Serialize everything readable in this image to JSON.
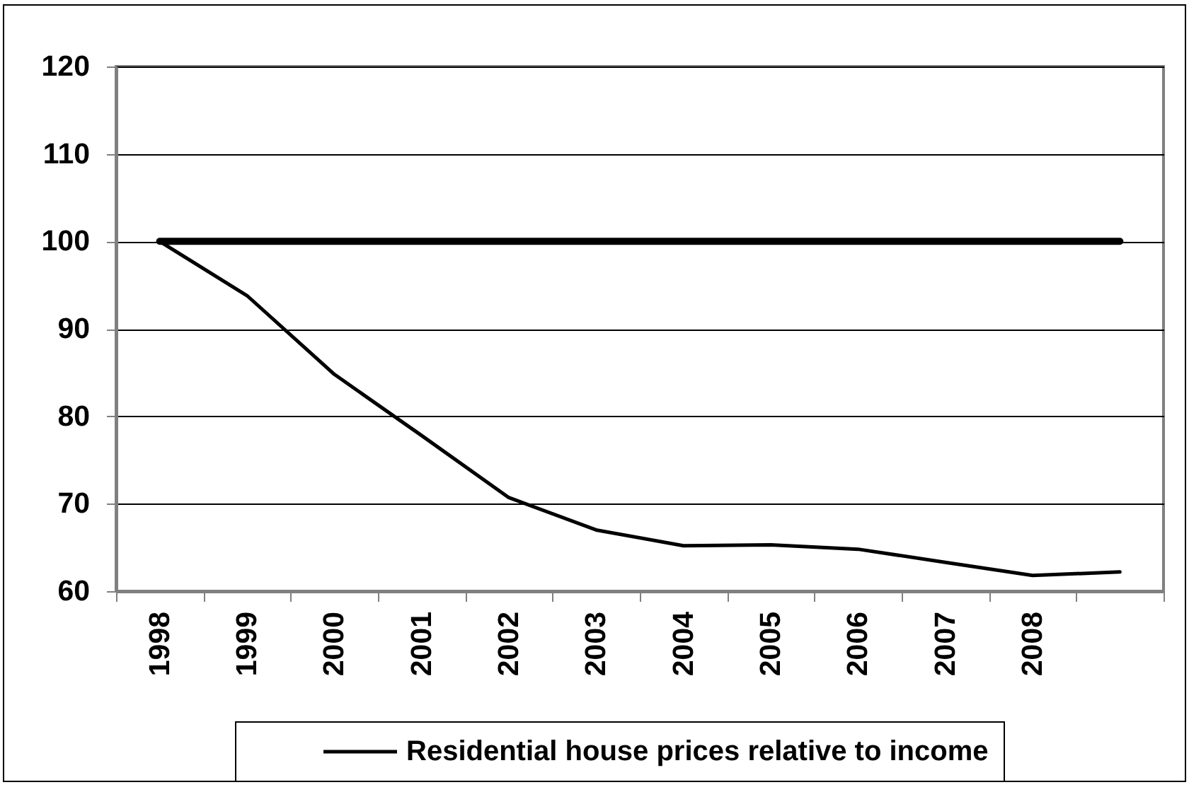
{
  "chart_data": {
    "type": "line",
    "categories": [
      "1998",
      "1999",
      "2000",
      "2001",
      "2002",
      "2003",
      "2004",
      "2005",
      "2006",
      "2007",
      "2008",
      null
    ],
    "series": [
      {
        "color": "#000000",
        "values": [
          100,
          100,
          100,
          100,
          100,
          100,
          100,
          100,
          100,
          100,
          100,
          100
        ]
      },
      {
        "name": "Residential house prices relative to income",
        "color": "#000000",
        "values": [
          100,
          93.8,
          84.8,
          77.8,
          70.7,
          67.0,
          65.2,
          65.3,
          64.8,
          63.3,
          61.8,
          62.2
        ]
      }
    ],
    "ylim": [
      60,
      120
    ],
    "yticks": [
      60,
      70,
      80,
      90,
      100,
      110,
      120
    ],
    "grid": "y",
    "legend": "bottom"
  }
}
